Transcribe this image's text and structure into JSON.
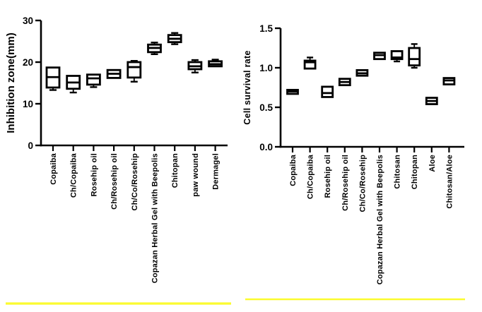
{
  "figure": {
    "background": "#ffffff"
  },
  "colors": {
    "ink": "#000000",
    "box_fill": "#ffffff",
    "underline": "#fbfb2f"
  },
  "chart_data": [
    {
      "type": "box",
      "title": "",
      "ylabel": "Inhibition zone(mm)",
      "xlabel": "",
      "ylim": [
        0,
        30
      ],
      "yticks": [
        0,
        10,
        20,
        30
      ],
      "ytick_labels": [
        "0",
        "10",
        "20",
        "30"
      ],
      "grid": false,
      "legend": false,
      "categories": [
        "Copaiba",
        "Ch/Copaiba",
        "Rosehip oil",
        "Ch/Rosehip oil",
        "Ch/Co/Rosehip",
        "Copazan Herbal Gel with Beepolis",
        "Chitopan",
        "paw wound",
        "Dermagel"
      ],
      "boxes": [
        {
          "min": 13.3,
          "q1": 13.9,
          "median": 16.4,
          "q3": 18.7,
          "max": 18.8
        },
        {
          "min": 12.7,
          "q1": 13.6,
          "median": 15.1,
          "q3": 16.7,
          "max": 16.7
        },
        {
          "min": 14.0,
          "q1": 14.6,
          "median": 16.1,
          "q3": 17.0,
          "max": 17.0
        },
        {
          "min": 16.0,
          "q1": 16.2,
          "median": 17.2,
          "q3": 18.1,
          "max": 18.2
        },
        {
          "min": 15.3,
          "q1": 16.3,
          "median": 18.8,
          "q3": 20.0,
          "max": 20.3
        },
        {
          "min": 21.9,
          "q1": 22.4,
          "median": 23.4,
          "q3": 24.2,
          "max": 24.7
        },
        {
          "min": 24.3,
          "q1": 24.8,
          "median": 25.6,
          "q3": 26.5,
          "max": 27.0
        },
        {
          "min": 17.5,
          "q1": 18.3,
          "median": 19.0,
          "q3": 20.0,
          "max": 20.5
        },
        {
          "min": 18.9,
          "q1": 19.0,
          "median": 19.5,
          "q3": 20.2,
          "max": 20.6
        }
      ]
    },
    {
      "type": "box",
      "title": "",
      "ylabel": "Cell survival rate",
      "xlabel": "",
      "ylim": [
        0,
        1.5
      ],
      "yticks": [
        0,
        0.5,
        1.0,
        1.5
      ],
      "ytick_labels": [
        "0.0",
        "0.5",
        "1.0",
        "1.5"
      ],
      "grid": false,
      "legend": false,
      "categories": [
        "Copaiba",
        "Ch/Copaiba",
        "Rosehip oil",
        "Ch/Rosehip oil",
        "Ch/Co/Rosehip",
        "Copazan Herbal Gel with Beepolis",
        "Chitosan",
        "Chitopan",
        "Aloe",
        "Chitosan/Aloe"
      ],
      "boxes": [
        {
          "min": 0.66,
          "q1": 0.67,
          "median": 0.7,
          "q3": 0.72,
          "max": 0.73
        },
        {
          "min": 0.98,
          "q1": 0.99,
          "median": 1.07,
          "q3": 1.09,
          "max": 1.13
        },
        {
          "min": 0.62,
          "q1": 0.63,
          "median": 0.68,
          "q3": 0.76,
          "max": 0.76
        },
        {
          "min": 0.77,
          "q1": 0.78,
          "median": 0.82,
          "q3": 0.86,
          "max": 0.86
        },
        {
          "min": 0.89,
          "q1": 0.9,
          "median": 0.93,
          "q3": 0.97,
          "max": 0.97
        },
        {
          "min": 1.1,
          "q1": 1.11,
          "median": 1.16,
          "q3": 1.19,
          "max": 1.2
        },
        {
          "min": 1.08,
          "q1": 1.11,
          "median": 1.13,
          "q3": 1.21,
          "max": 1.22
        },
        {
          "min": 1.0,
          "q1": 1.03,
          "median": 1.11,
          "q3": 1.25,
          "max": 1.3
        },
        {
          "min": 0.53,
          "q1": 0.54,
          "median": 0.58,
          "q3": 0.62,
          "max": 0.63
        },
        {
          "min": 0.78,
          "q1": 0.79,
          "median": 0.84,
          "q3": 0.87,
          "max": 0.88
        }
      ]
    }
  ]
}
